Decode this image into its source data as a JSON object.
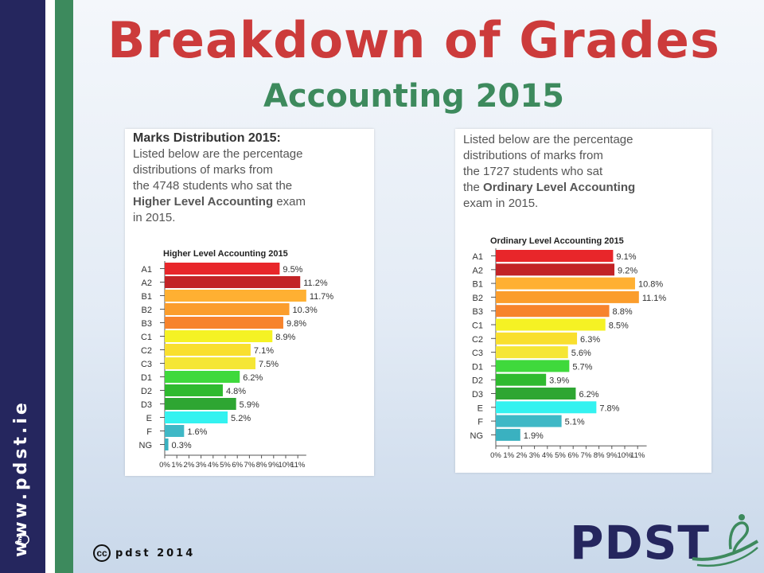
{
  "slide": {
    "title": "Breakdown of Grades",
    "subtitle": "Accounting 2015",
    "side_text": "www.pdst.ie",
    "footer_cc": "cc",
    "footer_text": "pdst 2014",
    "logo_text": "PDST"
  },
  "left_panel": {
    "heading": "Marks Distribution 2015:",
    "line1": "Listed below are the percentage",
    "line2": "distributions of marks from",
    "line3": "the 4748 students who sat the",
    "line4_bold": "Higher Level Accounting",
    "line4_rest": " exam",
    "line5": "in 2015."
  },
  "right_panel": {
    "line1": "Listed below are the percentage",
    "line2": "distributions of marks from",
    "line3": "the 1727 students who sat",
    "line4_pre": "the ",
    "line4_bold": "Ordinary Level Accounting",
    "line5": "exam in 2015."
  },
  "chart_data": [
    {
      "type": "bar",
      "orientation": "horizontal",
      "title": "Higher Level Accounting 2015",
      "categories": [
        "A1",
        "A2",
        "B1",
        "B2",
        "B3",
        "C1",
        "C2",
        "C3",
        "D1",
        "D2",
        "D3",
        "E",
        "F",
        "NG"
      ],
      "values": [
        9.5,
        11.2,
        11.7,
        10.3,
        9.8,
        8.9,
        7.1,
        7.5,
        6.2,
        4.8,
        5.9,
        5.2,
        1.6,
        0.3
      ],
      "value_labels": [
        "9.5%",
        "11.2%",
        "11.7%",
        "10.3%",
        "9.8%",
        "8.9%",
        "7.1%",
        "7.5%",
        "6.2%",
        "4.8%",
        "5.9%",
        "5.2%",
        "1.6%",
        "0.3%"
      ],
      "colors": [
        "#e8262a",
        "#c22326",
        "#ffb032",
        "#fb9d2c",
        "#f7832c",
        "#f5f224",
        "#f9df2e",
        "#f5e635",
        "#3fd93c",
        "#2fba2f",
        "#2ea632",
        "#34f2f0",
        "#3fb8c6",
        "#3ab1c0"
      ],
      "xticks": [
        "0%",
        "1%",
        "2%",
        "3%",
        "4%",
        "5%",
        "6%",
        "7%",
        "8%",
        "9%",
        "10%",
        "11%"
      ],
      "xlim": [
        0,
        11.7
      ]
    },
    {
      "type": "bar",
      "orientation": "horizontal",
      "title": "Ordinary Level Accounting 2015",
      "categories": [
        "A1",
        "A2",
        "B1",
        "B2",
        "B3",
        "C1",
        "C2",
        "C3",
        "D1",
        "D2",
        "D3",
        "E",
        "F",
        "NG"
      ],
      "values": [
        9.1,
        9.2,
        10.8,
        11.1,
        8.8,
        8.5,
        6.3,
        5.6,
        5.7,
        3.9,
        6.2,
        7.8,
        5.1,
        1.9
      ],
      "value_labels": [
        "9.1%",
        "9.2%",
        "10.8%",
        "11.1%",
        "8.8%",
        "8.5%",
        "6.3%",
        "5.6%",
        "5.7%",
        "3.9%",
        "6.2%",
        "7.8%",
        "5.1%",
        "1.9%"
      ],
      "colors": [
        "#e8262a",
        "#c22326",
        "#ffb032",
        "#fb9d2c",
        "#f7832c",
        "#f5f224",
        "#f9df2e",
        "#f5e635",
        "#3fd93c",
        "#2fba2f",
        "#2ea632",
        "#34f2f0",
        "#3fb8c6",
        "#3ab1c0"
      ],
      "xticks": [
        "0%",
        "1%",
        "2%",
        "3%",
        "4%",
        "5%",
        "6%",
        "7%",
        "8%",
        "9%",
        "10%",
        "11%"
      ],
      "xlim": [
        0,
        11.7
      ]
    }
  ]
}
